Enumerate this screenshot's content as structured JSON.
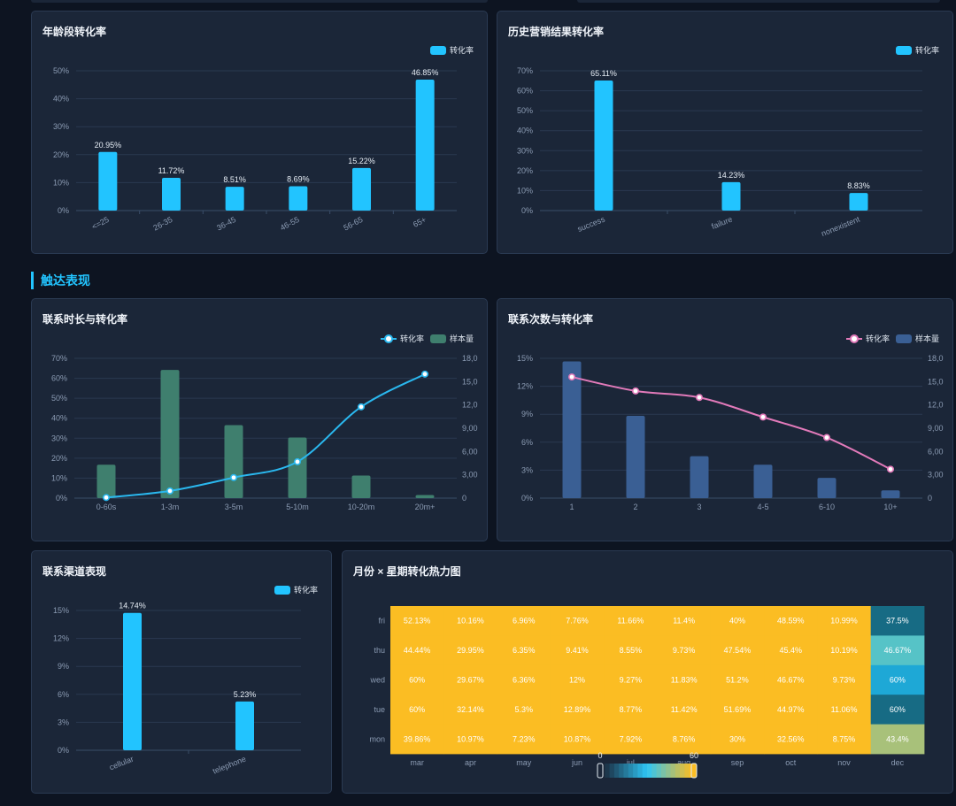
{
  "section_title": "触达表现",
  "colors": {
    "bar": "#22c4ff",
    "duration_bar": "#3f7f6e",
    "contacts_bar": "#3a5f94",
    "duration_line": "#2ab8ef",
    "contacts_line": "#e27aba",
    "heat_high": "#fbbd23",
    "grid": "#2a3950"
  },
  "chart_data": [
    {
      "id": "age",
      "type": "bar",
      "title": "年龄段转化率",
      "legend": [
        "转化率"
      ],
      "categories": [
        "<=25",
        "26-35",
        "36-45",
        "46-55",
        "56-65",
        "65+"
      ],
      "values": [
        20.95,
        11.72,
        8.51,
        8.69,
        15.22,
        46.85
      ],
      "value_labels": [
        "20.95%",
        "11.72%",
        "8.51%",
        "8.69%",
        "15.22%",
        "46.85%"
      ],
      "ylim": [
        0,
        50
      ],
      "y_ticks": [
        "0%",
        "10%",
        "20%",
        "30%",
        "40%",
        "50%"
      ],
      "grid": true,
      "legend_position": "top-right"
    },
    {
      "id": "poutcome",
      "type": "bar",
      "title": "历史营销结果转化率",
      "legend": [
        "转化率"
      ],
      "categories": [
        "success",
        "failure",
        "nonexistent"
      ],
      "values": [
        65.11,
        14.23,
        8.83
      ],
      "value_labels": [
        "65.11%",
        "14.23%",
        "8.83%"
      ],
      "ylim": [
        0,
        70
      ],
      "y_ticks": [
        "0%",
        "10%",
        "20%",
        "30%",
        "40%",
        "50%",
        "60%",
        "70%"
      ],
      "grid": true,
      "legend_position": "top-right"
    },
    {
      "id": "duration",
      "type": "bar+line",
      "title": "联系时长与转化率",
      "legend": [
        "转化率",
        "样本量"
      ],
      "categories": [
        "0-60s",
        "1-3m",
        "3-5m",
        "5-10m",
        "10-20m",
        "20m+"
      ],
      "rate": [
        0.3,
        3.6,
        10.3,
        18.2,
        45.7,
        62.1
      ],
      "samples": [
        4300,
        16500,
        9400,
        7800,
        2900,
        400
      ],
      "ylim": [
        0,
        70
      ],
      "y2lim": [
        0,
        18000
      ],
      "y_ticks": [
        "0%",
        "10%",
        "20%",
        "30%",
        "40%",
        "50%",
        "60%",
        "70%"
      ],
      "y2_ticks": [
        "0",
        "3,00",
        "6,00",
        "9,00",
        "12,0",
        "15,0",
        "18,0"
      ],
      "grid": true,
      "legend_position": "top-right"
    },
    {
      "id": "contacts",
      "type": "bar+line",
      "title": "联系次数与转化率",
      "legend": [
        "转化率",
        "样本量"
      ],
      "categories": [
        "1",
        "2",
        "3",
        "4-5",
        "6-10",
        "10+"
      ],
      "rate": [
        13.0,
        11.5,
        10.8,
        8.7,
        6.5,
        3.1
      ],
      "samples": [
        17600,
        10600,
        5400,
        4300,
        2600,
        1000
      ],
      "ylim": [
        0,
        15
      ],
      "y2lim": [
        0,
        18000
      ],
      "y_ticks": [
        "0%",
        "3%",
        "6%",
        "9%",
        "12%",
        "15%"
      ],
      "y2_ticks": [
        "0",
        "3,00",
        "6,00",
        "9,00",
        "12,0",
        "15,0",
        "18,0"
      ],
      "grid": true,
      "legend_position": "top-right"
    },
    {
      "id": "channel",
      "type": "bar",
      "title": "联系渠道表现",
      "legend": [
        "转化率"
      ],
      "categories": [
        "cellular",
        "telephone"
      ],
      "values": [
        14.74,
        5.23
      ],
      "value_labels": [
        "14.74%",
        "5.23%"
      ],
      "ylim": [
        0,
        15
      ],
      "y_ticks": [
        "0%",
        "3%",
        "6%",
        "9%",
        "12%",
        "15%"
      ],
      "grid": true,
      "legend_position": "top-right"
    },
    {
      "id": "heatmap",
      "type": "heatmap",
      "title": "月份 × 星期转化热力图",
      "x_categories": [
        "mar",
        "apr",
        "may",
        "jun",
        "jul",
        "aug",
        "sep",
        "oct",
        "nov",
        "dec"
      ],
      "y_categories": [
        "fri",
        "thu",
        "wed",
        "tue",
        "mon"
      ],
      "values": [
        [
          52.13,
          10.16,
          6.96,
          7.76,
          11.66,
          11.4,
          40,
          48.59,
          10.99,
          37.5
        ],
        [
          44.44,
          29.95,
          6.35,
          9.41,
          8.55,
          9.73,
          47.54,
          45.4,
          10.19,
          46.67
        ],
        [
          60,
          29.67,
          6.36,
          12,
          9.27,
          11.83,
          51.2,
          46.67,
          9.73,
          60
        ],
        [
          60,
          32.14,
          5.3,
          12.89,
          8.77,
          11.42,
          51.69,
          44.97,
          11.06,
          60
        ],
        [
          39.86,
          10.97,
          7.23,
          10.87,
          7.92,
          8.76,
          30,
          32.56,
          8.75,
          43.4
        ]
      ],
      "cell_labels": [
        [
          "52.13%",
          "10.16%",
          "6.96%",
          "7.76%",
          "11.66%",
          "11.4%",
          "40%",
          "48.59%",
          "10.99%",
          "37.5%"
        ],
        [
          "44.44%",
          "29.95%",
          "6.35%",
          "9.41%",
          "8.55%",
          "9.73%",
          "47.54%",
          "45.4%",
          "10.19%",
          "46.67%"
        ],
        [
          "60%",
          "29.67%",
          "6.36%",
          "12%",
          "9.27%",
          "11.83%",
          "51.2%",
          "46.67%",
          "9.73%",
          "60%"
        ],
        [
          "60%",
          "32.14%",
          "5.3%",
          "12.89%",
          "8.77%",
          "11.42%",
          "51.69%",
          "44.97%",
          "11.06%",
          "60%"
        ],
        [
          "39.86%",
          "10.97%",
          "7.23%",
          "10.87%",
          "7.92%",
          "8.76%",
          "30%",
          "32.56%",
          "8.75%",
          "43.4%"
        ]
      ],
      "dec_colors": [
        "#176b84",
        "#56c3c7",
        "#1ea8d6",
        "#176b84",
        "#a8c17a"
      ],
      "visual_map": {
        "min": 0,
        "max": 60,
        "min_label": "0",
        "max_label": "60"
      }
    }
  ]
}
